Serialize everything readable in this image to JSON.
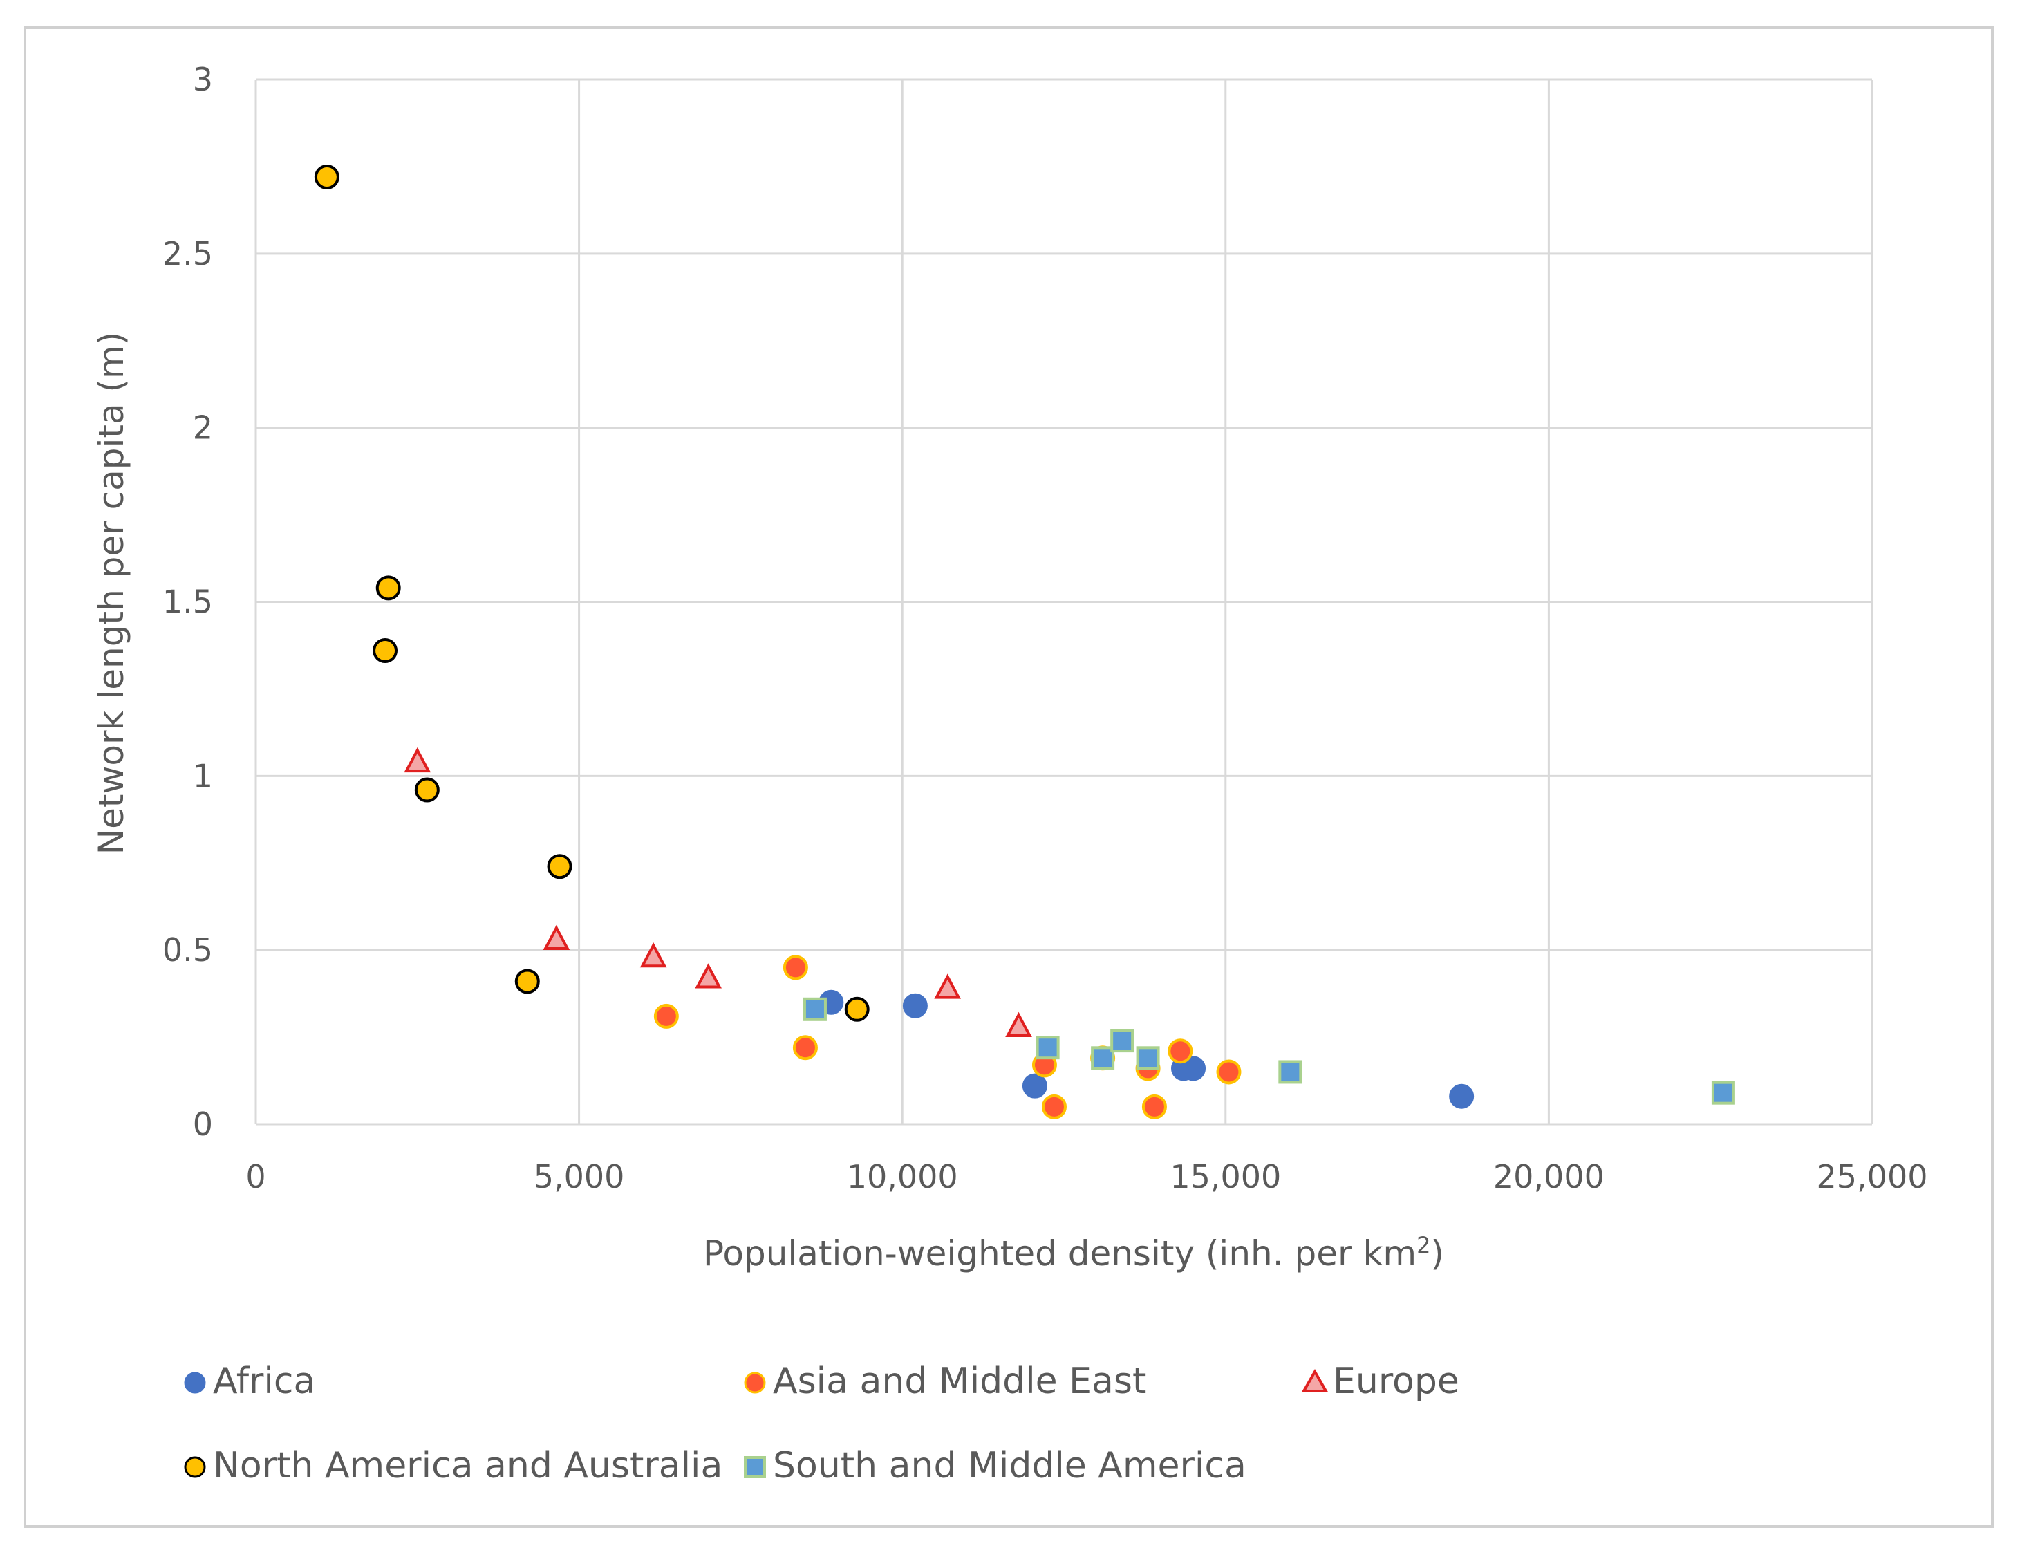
{
  "chart_data": {
    "type": "scatter",
    "title": "",
    "xlabel": "Population-weighted density (inh. per km",
    "xlabel_sup": "2",
    "xlabel_end": ")",
    "ylabel": "Network length per capita (m)",
    "xlim": [
      0,
      25000
    ],
    "ylim": [
      0,
      3
    ],
    "xticks": [
      0,
      5000,
      10000,
      15000,
      20000,
      25000
    ],
    "xtick_labels": [
      "0",
      "5,000",
      "10,000",
      "15,000",
      "20,000",
      "25,000"
    ],
    "yticks": [
      0,
      0.5,
      1,
      1.5,
      2,
      2.5,
      3
    ],
    "ytick_labels": [
      "0",
      "0.5",
      "1",
      "1.5",
      "2",
      "2.5",
      "3"
    ],
    "grid": true,
    "legend_position": "bottom",
    "series": [
      {
        "name": "Africa",
        "marker": "circle",
        "color": "#4472c4",
        "stroke": "#4472c4",
        "points": [
          [
            8900,
            0.35
          ],
          [
            10200,
            0.34
          ],
          [
            12050,
            0.11
          ],
          [
            14350,
            0.16
          ],
          [
            14500,
            0.16
          ],
          [
            18650,
            0.08
          ]
        ]
      },
      {
        "name": "Asia and Middle East",
        "marker": "circle",
        "color": "#ff5733",
        "stroke": "#ffc000",
        "points": [
          [
            6350,
            0.31
          ],
          [
            8350,
            0.45
          ],
          [
            8500,
            0.22
          ],
          [
            12200,
            0.17
          ],
          [
            12350,
            0.05
          ],
          [
            13100,
            0.19
          ],
          [
            13800,
            0.16
          ],
          [
            13900,
            0.05
          ],
          [
            14300,
            0.21
          ],
          [
            15050,
            0.15
          ]
        ]
      },
      {
        "name": "Europe",
        "marker": "triangle",
        "color": "#f4a6a6",
        "stroke": "#e02020",
        "points": [
          [
            2500,
            1.04
          ],
          [
            4650,
            0.53
          ],
          [
            6150,
            0.48
          ],
          [
            7000,
            0.42
          ],
          [
            10700,
            0.39
          ],
          [
            11800,
            0.28
          ]
        ]
      },
      {
        "name": "North America and Australia",
        "marker": "circle",
        "color": "#ffc000",
        "stroke": "#000000",
        "points": [
          [
            1100,
            2.72
          ],
          [
            2050,
            1.54
          ],
          [
            2000,
            1.36
          ],
          [
            2650,
            0.96
          ],
          [
            4700,
            0.74
          ],
          [
            4200,
            0.41
          ],
          [
            9300,
            0.33
          ]
        ]
      },
      {
        "name": "South and Middle America",
        "marker": "square",
        "color": "#5b9bd5",
        "stroke": "#a9d18e",
        "points": [
          [
            8650,
            0.33
          ],
          [
            12250,
            0.22
          ],
          [
            13100,
            0.19
          ],
          [
            13400,
            0.24
          ],
          [
            13800,
            0.19
          ],
          [
            16000,
            0.15
          ],
          [
            22700,
            0.09
          ]
        ]
      }
    ]
  }
}
